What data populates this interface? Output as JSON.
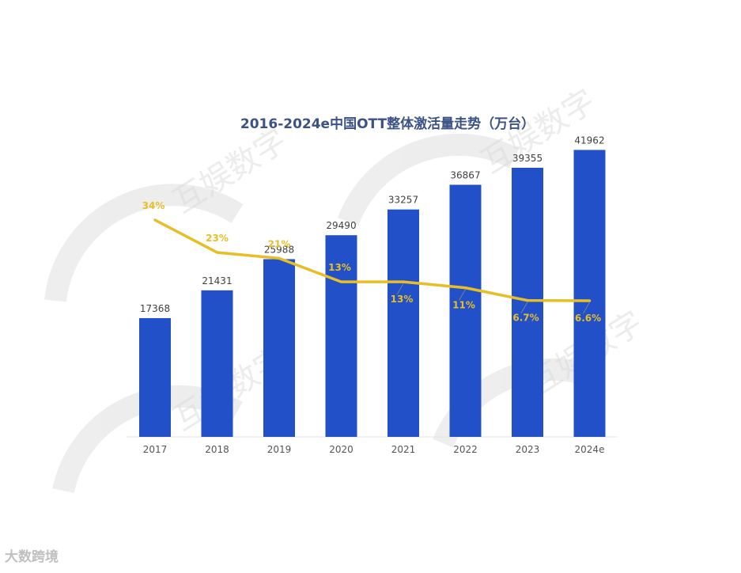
{
  "chart_data": {
    "type": "bar",
    "title": "2016-2024e中国OTT整体激活量走势（万台）",
    "categories": [
      "2017",
      "2018",
      "2019",
      "2020",
      "2021",
      "2022",
      "2023",
      "2024e"
    ],
    "series": [
      {
        "values": [
          17368,
          21431,
          25988,
          29490,
          33257,
          36867,
          39355,
          41962
        ]
      },
      {
        "type": "line",
        "values": [
          34,
          23,
          21,
          13,
          13,
          11,
          6.7,
          6.6
        ],
        "labels": [
          "34%",
          "23%",
          "21%",
          "13%",
          "13%",
          "11%",
          "6.7%",
          "6.6%"
        ]
      }
    ],
    "ylim": [
      0,
      50000
    ],
    "colors": {
      "bar": "#2150c8",
      "line": "#e7be26",
      "title": "#3b5286"
    },
    "grid": false
  },
  "watermark": "互娱数字",
  "footer": "大数跨境"
}
